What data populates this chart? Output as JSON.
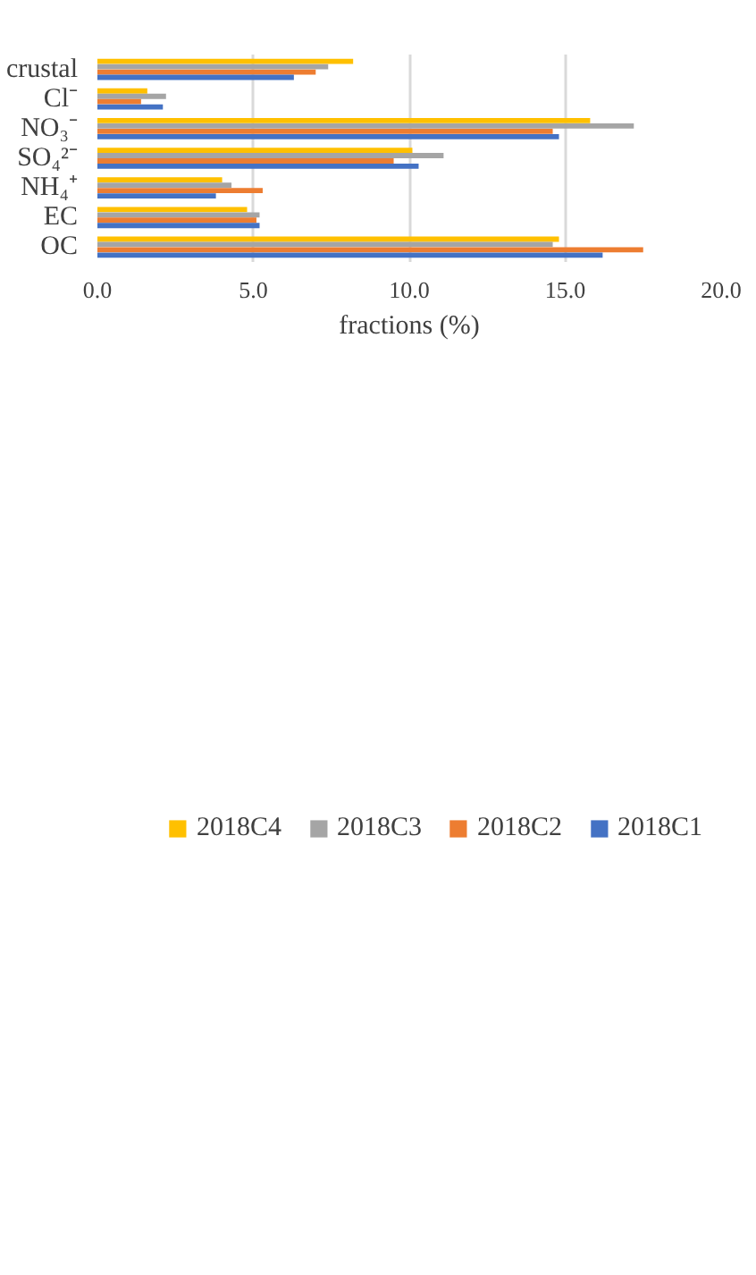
{
  "chart_data": {
    "type": "bar",
    "orientation": "horizontal",
    "xlabel": "fractions (%)",
    "categories": [
      "crustal",
      "Cl⁻",
      "NO₃⁻",
      "SO₄²⁻",
      "NH₄⁺",
      "EC",
      "OC"
    ],
    "series": [
      {
        "name": "2018C4",
        "color": "#ffc000",
        "values": [
          8.2,
          1.6,
          15.8,
          10.1,
          4.0,
          4.8,
          14.8
        ]
      },
      {
        "name": "2018C3",
        "color": "#a5a5a5",
        "values": [
          7.4,
          2.2,
          17.2,
          11.1,
          4.3,
          5.2,
          14.6
        ]
      },
      {
        "name": "2018C2",
        "color": "#ed7d31",
        "values": [
          7.0,
          1.4,
          14.6,
          9.5,
          5.3,
          5.1,
          17.5
        ]
      },
      {
        "name": "2018C1",
        "color": "#4472c4",
        "values": [
          6.3,
          2.1,
          14.8,
          10.3,
          3.8,
          5.2,
          16.2
        ]
      }
    ],
    "xlim": [
      0,
      20
    ],
    "xticks": [
      {
        "value": 0,
        "label": "0.0"
      },
      {
        "value": 5,
        "label": "5.0"
      },
      {
        "value": 10,
        "label": "10.0"
      },
      {
        "value": 15,
        "label": "15.0"
      },
      {
        "value": 20,
        "label": "20.0"
      }
    ],
    "grid": "x",
    "legend": "bottom"
  }
}
